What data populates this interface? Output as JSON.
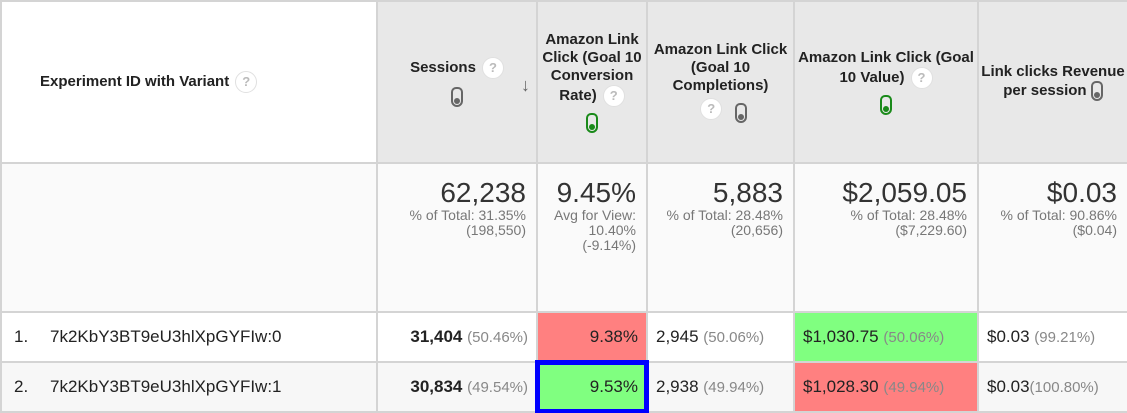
{
  "headers": {
    "dimension": "Experiment ID with Variant",
    "sessions": "Sessions",
    "conv_rate": "Amazon Link Click (Goal 10 Conversion Rate)",
    "completions": "Amazon Link Click (Goal 10 Completions)",
    "value": "Amazon Link Click (Goal 10 Value)",
    "rev_per_session": "Link clicks Revenue per session",
    "help": "?"
  },
  "totals": {
    "sessions": {
      "value": "62,238",
      "sub": "% of Total: 31.35% (198,550)"
    },
    "conv_rate": {
      "value": "9.45%",
      "sub": "Avg for View: 10.40% (-9.14%)"
    },
    "completions": {
      "value": "5,883",
      "sub": "% of Total: 28.48% (20,656)"
    },
    "value": {
      "value": "$2,059.05",
      "sub": "% of Total: 28.48% ($7,229.60)"
    },
    "rev_per_session": {
      "value": "$0.03",
      "sub": "% of Total: 90.86% ($0.04)"
    }
  },
  "rows": [
    {
      "index": "1.",
      "id": "7k2KbY3BT9eU3hlXpGYFIw:0",
      "sessions": "31,404",
      "sessions_pct": "(50.46%)",
      "conv_rate": "9.38%",
      "completions": "2,945",
      "completions_pct": "(50.06%)",
      "value": "$1,030.75",
      "value_pct": "(50.06%)",
      "rps": "$0.03",
      "rps_pct": "(99.21%)"
    },
    {
      "index": "2.",
      "id": "7k2KbY3BT9eU3hlXpGYFIw:1",
      "sessions": "30,834",
      "sessions_pct": "(49.54%)",
      "conv_rate": "9.53%",
      "completions": "2,938",
      "completions_pct": "(49.94%)",
      "value": "$1,028.30",
      "value_pct": "(49.94%)",
      "rps": "$0.03",
      "rps_pct": "(100.80%)"
    }
  ],
  "colors": {
    "negative": "#ff8080",
    "positive": "#80ff80",
    "highlight": "#0000ff"
  }
}
